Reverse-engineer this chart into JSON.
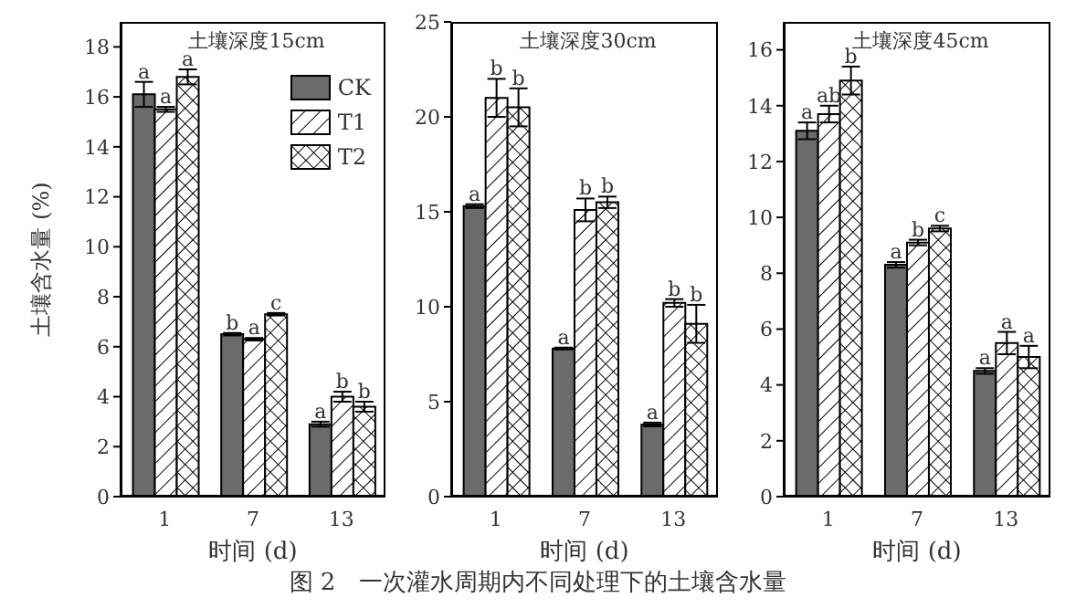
{
  "chart_data": [
    {
      "type": "bar",
      "title": "土壤深度15cm",
      "xlabel": "时间 (d)",
      "ylabel": "土壤含水量 (%)",
      "categories": [
        "1",
        "7",
        "13"
      ],
      "ylim": [
        0,
        19
      ],
      "yticks": [
        0,
        2,
        4,
        6,
        8,
        10,
        12,
        14,
        16,
        18
      ],
      "legend": "top right",
      "annotations": [
        "图 2　一次灌水周期内不同处理下的土壤含水量"
      ],
      "series": [
        {
          "name": "CK",
          "color": "#6b6b6b",
          "values": [
            16.1,
            6.5,
            2.9
          ],
          "errors": [
            0.5,
            0.05,
            0.1
          ],
          "value_labels": [
            "a",
            "b",
            "a"
          ]
        },
        {
          "name": "T1",
          "color": "#000000",
          "values": [
            15.5,
            6.3,
            4.0
          ],
          "errors": [
            0.1,
            0.05,
            0.2
          ],
          "value_labels": [
            "a",
            "a",
            "b"
          ]
        },
        {
          "name": "T2",
          "color": "#000000",
          "values": [
            16.8,
            7.3,
            3.6
          ],
          "errors": [
            0.3,
            0.05,
            0.2
          ],
          "value_labels": [
            "a",
            "c",
            "b"
          ]
        }
      ]
    },
    {
      "type": "bar",
      "title": "土壤深度30cm",
      "xlabel": "时间 (d)",
      "categories": [
        "1",
        "7",
        "13"
      ],
      "ylim": [
        0,
        25
      ],
      "yticks": [
        0,
        5,
        10,
        15,
        20,
        25
      ],
      "legend": false,
      "series": [
        {
          "color": "#6b6b6b",
          "values": [
            15.3,
            7.8,
            3.8
          ],
          "errors": [
            0.1,
            0.05,
            0.1
          ],
          "value_labels": [
            "a",
            "a",
            "a"
          ]
        },
        {
          "color": "#000000",
          "values": [
            21.0,
            15.1,
            10.2
          ],
          "errors": [
            1.0,
            0.6,
            0.2
          ],
          "value_labels": [
            "b",
            "b",
            "b"
          ]
        },
        {
          "color": "#000000",
          "values": [
            20.5,
            15.5,
            9.1
          ],
          "errors": [
            1.0,
            0.3,
            1.0
          ],
          "value_labels": [
            "b",
            "b",
            "b"
          ]
        }
      ]
    },
    {
      "type": "bar",
      "title": "土壤深度45cm",
      "xlabel": "时间 (d)",
      "categories": [
        "1",
        "7",
        "13"
      ],
      "ylim": [
        0,
        17
      ],
      "yticks": [
        0,
        2,
        4,
        6,
        8,
        10,
        12,
        14,
        16
      ],
      "legend": false,
      "series": [
        {
          "color": "#6b6b6b",
          "values": [
            13.1,
            8.3,
            4.5
          ],
          "errors": [
            0.3,
            0.1,
            0.1
          ],
          "value_labels": [
            "a",
            "a",
            "a"
          ]
        },
        {
          "color": "#000000",
          "values": [
            13.7,
            9.1,
            5.5
          ],
          "errors": [
            0.3,
            0.1,
            0.4
          ],
          "value_labels": [
            "ab",
            "b",
            "a"
          ]
        },
        {
          "color": "#000000",
          "values": [
            14.9,
            9.6,
            5.0
          ],
          "errors": [
            0.5,
            0.1,
            0.4
          ],
          "value_labels": [
            "b",
            "c",
            "a"
          ]
        }
      ]
    }
  ]
}
